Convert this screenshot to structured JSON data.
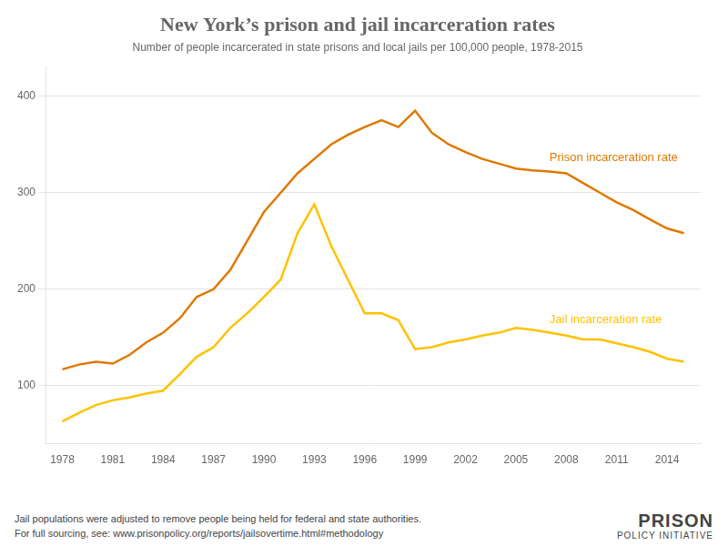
{
  "chart_data": {
    "type": "line",
    "title": "New York’s prison and jail incarceration rates",
    "subtitle": "Number of people incarcerated in state prisons and local jails per 100,000 people, 1978-2015",
    "x": [
      1978,
      1979,
      1980,
      1981,
      1982,
      1983,
      1984,
      1985,
      1986,
      1987,
      1988,
      1989,
      1990,
      1991,
      1992,
      1993,
      1994,
      1995,
      1996,
      1997,
      1998,
      1999,
      2000,
      2001,
      2002,
      2003,
      2004,
      2005,
      2006,
      2007,
      2008,
      2009,
      2010,
      2011,
      2012,
      2013,
      2014,
      2015
    ],
    "series": [
      {
        "name": "Prison incarceration rate",
        "color": "#e07800",
        "values": [
          117,
          122,
          125,
          123,
          132,
          145,
          155,
          170,
          192,
          200,
          220,
          250,
          280,
          300,
          320,
          335,
          350,
          360,
          368,
          375,
          368,
          385,
          362,
          350,
          342,
          335,
          330,
          325,
          323,
          322,
          320,
          310,
          300,
          290,
          282,
          272,
          263,
          258
        ]
      },
      {
        "name": "Jail incarceration rate",
        "color": "#ffc200",
        "values": [
          63,
          72,
          80,
          85,
          88,
          92,
          95,
          112,
          130,
          140,
          160,
          175,
          192,
          210,
          258,
          288,
          245,
          210,
          175,
          175,
          168,
          138,
          140,
          145,
          148,
          152,
          155,
          160,
          158,
          155,
          152,
          148,
          148,
          144,
          140,
          135,
          128,
          125
        ]
      }
    ],
    "xlim": [
      1977,
      2016
    ],
    "xticks": [
      1978,
      1981,
      1984,
      1987,
      1990,
      1993,
      1996,
      1999,
      2002,
      2005,
      2008,
      2011,
      2014
    ],
    "ylim": [
      40,
      430
    ],
    "yticks": [
      100,
      200,
      300,
      400
    ],
    "grid": "y",
    "marker": "none",
    "annotations": [
      "Jail populations were adjusted to remove people being held for federal and state authorities.",
      "For full sourcing, see: www.prisonpolicy.org/reports/jailsovertime.html#methodology",
      "PRISON",
      "POLICY INITIATIVE"
    ]
  }
}
